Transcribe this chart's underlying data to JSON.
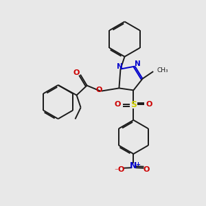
{
  "bg_color": "#e8e8e8",
  "black": "#1a1a1a",
  "blue": "#0000cc",
  "red": "#cc0000",
  "sulfur_yellow": "#cccc00",
  "lw": 1.4,
  "fig_size": [
    3.0,
    3.0
  ],
  "dpi": 100,
  "xlim": [
    0,
    10
  ],
  "ylim": [
    0,
    10
  ]
}
